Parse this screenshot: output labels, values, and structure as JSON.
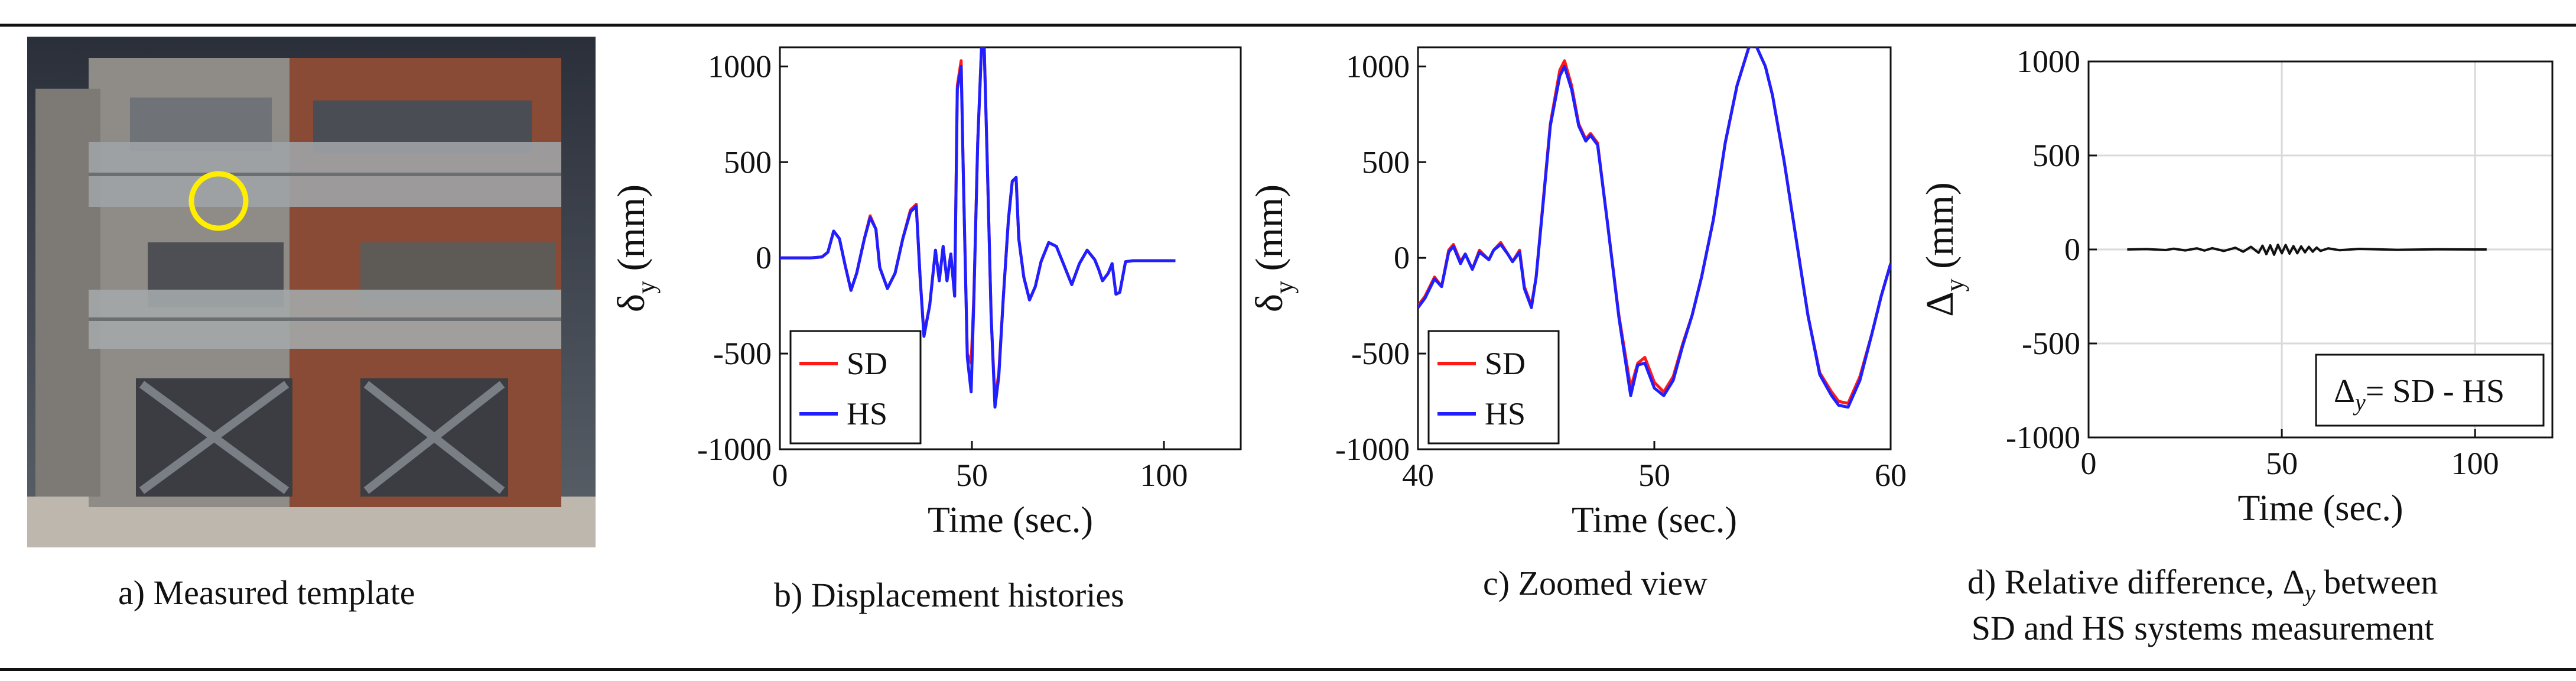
{
  "figure": {
    "panel_a": {
      "caption": "a) Measured template"
    },
    "panel_b": {
      "caption": "b) Displacement histories"
    },
    "panel_c": {
      "caption": "c) Zoomed view"
    },
    "panel_d": {
      "caption_line1": "d) Relative difference, Δ",
      "caption_sub": "y",
      "caption_line2": " between",
      "caption_line3": "SD and HS systems measurement",
      "legend_text": "= SD - HS"
    }
  },
  "colors": {
    "SD": "#ff1a1a",
    "HS": "#1f1fff",
    "diff": "#111111",
    "marker": "#ffee00"
  },
  "chart_data": [
    {
      "type": "line",
      "panel": "b",
      "xlabel": "Time (sec.)",
      "ylabel": "δ",
      "ylabel_sub": "y",
      "ylabel_unit": "(mm)",
      "xlim": [
        0,
        120
      ],
      "ylim": [
        -1000,
        1100
      ],
      "xticks": [
        0,
        50,
        100
      ],
      "yticks": [
        -1000,
        -500,
        0,
        500,
        1000
      ],
      "grid": false,
      "legend_position": "bottom-left",
      "series": [
        {
          "name": "SD",
          "x": [
            0,
            8,
            11,
            12.5,
            14,
            15.5,
            17,
            18.5,
            20,
            22,
            23.5,
            25,
            26,
            28,
            30,
            32,
            34,
            35.5,
            36.5,
            37.5,
            39,
            40.5,
            41.5,
            42.5,
            43.5,
            44.5,
            45.5,
            46.2,
            47.2,
            47.8,
            48.8,
            49.8,
            50.5,
            51.5,
            52.5,
            53.2,
            54,
            55,
            56,
            57,
            58.2,
            59.5,
            60.5,
            61.5,
            62.2,
            63.5,
            65,
            66.5,
            68,
            70,
            72,
            74,
            76,
            78,
            80,
            82,
            83,
            84,
            85.5,
            86.5,
            87.5,
            88.5,
            90,
            92,
            95,
            100,
            103
          ],
          "y": [
            0,
            0,
            5,
            30,
            140,
            100,
            -40,
            -170,
            -80,
            100,
            220,
            150,
            -50,
            -160,
            -80,
            100,
            250,
            280,
            -100,
            -400,
            -250,
            40,
            -120,
            60,
            -120,
            20,
            -200,
            900,
            1030,
            400,
            -500,
            -550,
            -200,
            600,
            1100,
            1110,
            500,
            -300,
            -750,
            -600,
            -200,
            200,
            400,
            420,
            100,
            -100,
            -220,
            -150,
            -20,
            80,
            60,
            -40,
            -140,
            -30,
            40,
            -10,
            -60,
            -120,
            -80,
            -30,
            -190,
            -180,
            -20,
            -15,
            -15,
            -15,
            -15
          ]
        },
        {
          "name": "HS",
          "x": [
            0,
            8,
            11,
            12.5,
            14,
            15.5,
            17,
            18.5,
            20,
            22,
            23.5,
            25,
            26,
            28,
            30,
            32,
            34,
            35.5,
            36.5,
            37.5,
            39,
            40.5,
            41.5,
            42.5,
            43.5,
            44.5,
            45.5,
            46.2,
            47.2,
            47.8,
            48.8,
            49.8,
            50.5,
            51.5,
            52.5,
            53.2,
            54,
            55,
            56,
            57,
            58.2,
            59.5,
            60.5,
            61.5,
            62.2,
            63.5,
            65,
            66.5,
            68,
            70,
            72,
            74,
            76,
            78,
            80,
            82,
            83,
            84,
            85.5,
            86.5,
            87.5,
            88.5,
            90,
            92,
            95,
            100,
            103
          ],
          "y": [
            0,
            0,
            5,
            30,
            140,
            100,
            -40,
            -170,
            -80,
            100,
            210,
            150,
            -50,
            -160,
            -80,
            100,
            240,
            270,
            -100,
            -410,
            -250,
            40,
            -120,
            60,
            -120,
            20,
            -200,
            880,
            1000,
            400,
            -520,
            -700,
            -220,
            600,
            1100,
            1100,
            500,
            -300,
            -780,
            -620,
            -200,
            200,
            400,
            420,
            100,
            -100,
            -220,
            -150,
            -20,
            80,
            60,
            -40,
            -140,
            -30,
            40,
            -10,
            -60,
            -120,
            -80,
            -30,
            -190,
            -180,
            -20,
            -15,
            -15,
            -15,
            -15
          ]
        }
      ]
    },
    {
      "type": "line",
      "panel": "c",
      "xlabel": "Time (sec.)",
      "ylabel": "δ",
      "ylabel_sub": "y",
      "ylabel_unit": "(mm)",
      "xlim": [
        40,
        60
      ],
      "ylim": [
        -1000,
        1100
      ],
      "xticks": [
        40,
        50,
        60
      ],
      "yticks": [
        -1000,
        -500,
        0,
        500,
        1000
      ],
      "grid": false,
      "legend_position": "bottom-left",
      "series": [
        {
          "name": "SD",
          "x": [
            40,
            40.3,
            40.7,
            41,
            41.3,
            41.5,
            41.8,
            42,
            42.3,
            42.6,
            43,
            43.2,
            43.5,
            43.8,
            44,
            44.3,
            44.5,
            44.8,
            45,
            45.3,
            45.6,
            46,
            46.2,
            46.5,
            46.8,
            47.1,
            47.3,
            47.6,
            48,
            48.5,
            49,
            49.3,
            49.6,
            50,
            50.4,
            50.8,
            51.2,
            51.6,
            52,
            52.5,
            53,
            53.5,
            54,
            54.3,
            54.7,
            55,
            55.5,
            56,
            56.5,
            57,
            57.5,
            57.8,
            58.2,
            58.7,
            59.2,
            59.6,
            60
          ],
          "y": [
            -250,
            -200,
            -100,
            -150,
            40,
            70,
            -20,
            20,
            -60,
            40,
            -10,
            40,
            80,
            20,
            -20,
            40,
            -150,
            -250,
            -100,
            300,
            700,
            980,
            1030,
            900,
            700,
            620,
            650,
            600,
            200,
            -300,
            -680,
            -550,
            -520,
            -650,
            -700,
            -620,
            -450,
            -300,
            -100,
            200,
            600,
            900,
            1100,
            1110,
            1000,
            850,
            500,
            100,
            -300,
            -600,
            -700,
            -750,
            -760,
            -620,
            -400,
            -200,
            -30
          ]
        },
        {
          "name": "HS",
          "x": [
            40,
            40.3,
            40.7,
            41,
            41.3,
            41.5,
            41.8,
            42,
            42.3,
            42.6,
            43,
            43.2,
            43.5,
            43.8,
            44,
            44.3,
            44.5,
            44.8,
            45,
            45.3,
            45.6,
            46,
            46.2,
            46.5,
            46.8,
            47.1,
            47.3,
            47.6,
            48,
            48.5,
            49,
            49.3,
            49.6,
            50,
            50.4,
            50.8,
            51.2,
            51.6,
            52,
            52.5,
            53,
            53.5,
            54,
            54.3,
            54.7,
            55,
            55.5,
            56,
            56.5,
            57,
            57.5,
            57.8,
            58.2,
            58.7,
            59.2,
            59.6,
            60
          ],
          "y": [
            -260,
            -210,
            -110,
            -150,
            30,
            60,
            -30,
            20,
            -60,
            30,
            -10,
            40,
            70,
            20,
            -20,
            30,
            -160,
            -260,
            -100,
            290,
            690,
            950,
            1000,
            880,
            690,
            610,
            640,
            590,
            200,
            -310,
            -720,
            -560,
            -550,
            -680,
            -720,
            -640,
            -460,
            -300,
            -100,
            200,
            600,
            900,
            1100,
            1110,
            1000,
            850,
            500,
            100,
            -300,
            -610,
            -720,
            -770,
            -780,
            -640,
            -400,
            -200,
            -30
          ]
        }
      ]
    },
    {
      "type": "line",
      "panel": "d",
      "xlabel": "Time (sec.)",
      "ylabel": "Δ",
      "ylabel_sub": "y",
      "ylabel_unit": "(mm)",
      "xlim": [
        0,
        120
      ],
      "ylim": [
        -1000,
        1000
      ],
      "xticks": [
        0,
        50,
        100
      ],
      "yticks": [
        -1000,
        -500,
        0,
        500,
        1000
      ],
      "grid": true,
      "legend_position": "bottom-right",
      "series": [
        {
          "name": "Δy",
          "x": [
            10,
            15,
            20,
            22,
            25,
            28,
            30,
            32,
            35,
            38,
            40,
            42,
            44,
            45,
            46,
            47,
            48,
            49,
            50,
            51,
            52,
            53,
            54,
            55,
            56,
            57,
            58,
            59,
            60,
            62,
            65,
            70,
            80,
            90,
            100,
            103
          ],
          "y": [
            0,
            2,
            -3,
            4,
            -5,
            6,
            -6,
            7,
            -8,
            9,
            -12,
            14,
            -18,
            20,
            -25,
            22,
            -28,
            25,
            -20,
            24,
            -22,
            18,
            -20,
            16,
            -15,
            14,
            -12,
            10,
            -8,
            6,
            -4,
            3,
            -2,
            1,
            0,
            0
          ]
        }
      ]
    }
  ]
}
